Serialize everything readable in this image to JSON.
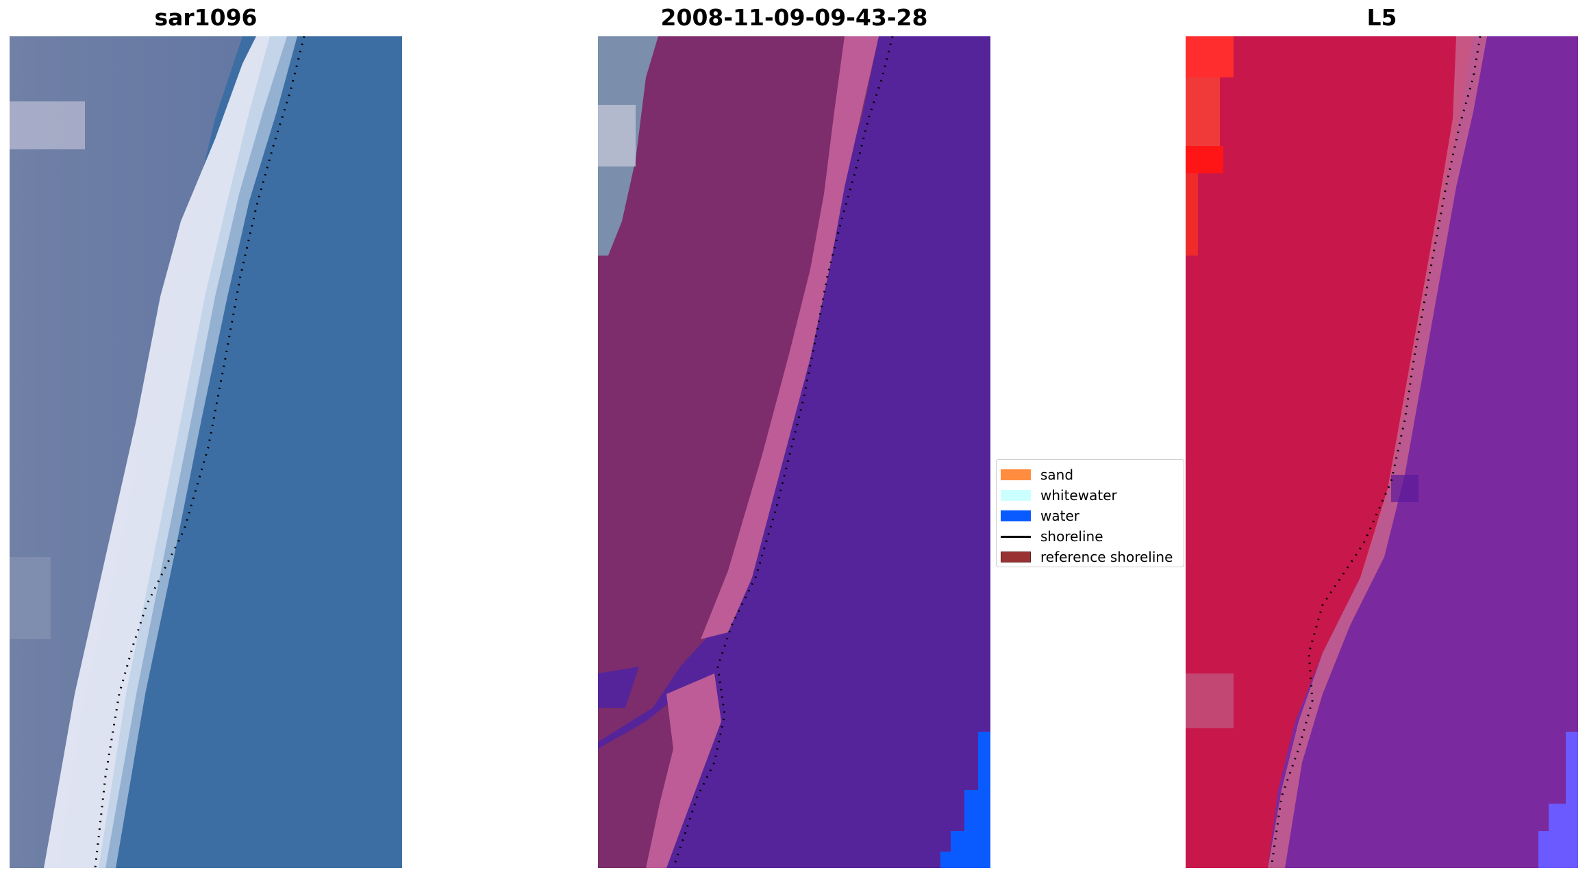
{
  "panels": [
    {
      "title": "sar1096"
    },
    {
      "title": "2008-11-09-09-43-28"
    },
    {
      "title": "L5"
    }
  ],
  "legend": {
    "items": [
      {
        "label": "sand",
        "color": "#ff8c3f",
        "kind": "patch"
      },
      {
        "label": "whitewater",
        "color": "#ccffff",
        "kind": "patch"
      },
      {
        "label": "water",
        "color": "#0a5bff",
        "kind": "patch"
      },
      {
        "label": "shoreline",
        "color": "#000000",
        "kind": "line"
      },
      {
        "label": "reference shoreline",
        "color": "#993333",
        "kind": "patch"
      }
    ]
  },
  "colors": {
    "rgb_water": "#3f6fa3",
    "rgb_land": "#6f7fa5",
    "rgb_whitewater": "#e8ecf6",
    "class_land": "#7d2d6b",
    "class_sand": "#bd5c97",
    "class_water": "#55249a",
    "class_water_blue": "#0a5bff",
    "nir_land": "#c8174a",
    "nir_water": "#7a2a9e",
    "shoreline": "#000000"
  }
}
